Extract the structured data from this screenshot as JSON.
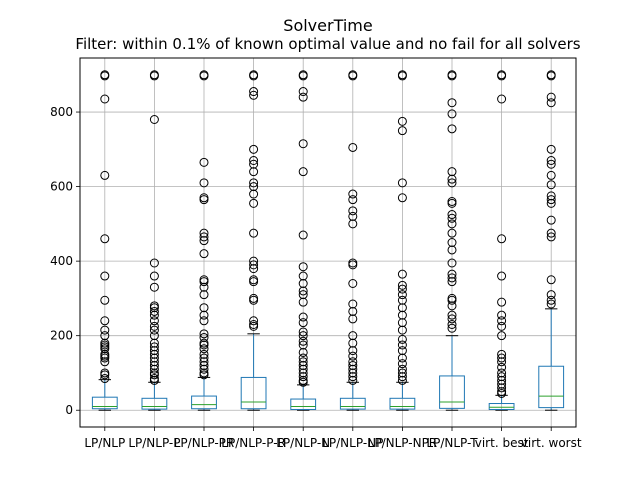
{
  "chart_data": {
    "type": "box",
    "title": "SolverTime",
    "subtitle": "Filter: within 0.1% of known optimal value and no fail for all solvers",
    "xlabel": "",
    "ylabel": "",
    "ylim": [
      -45,
      945
    ],
    "yticks": [
      0,
      200,
      400,
      600,
      800
    ],
    "grid": true,
    "legend": "none",
    "colors": {
      "box": "#1f77b4",
      "median": "#2ca02c",
      "flier": "#000000",
      "grid": "#b0b0b0"
    },
    "categories": [
      "LP/NLP",
      "LP/NLP-P",
      "LP/NLP-PR",
      "LP/NLP-P-R",
      "LP/NLP-N",
      "LP/NLP-NP",
      "LP/NLP-NPR",
      "LP/NLP-T",
      "virt. best",
      "virt. worst"
    ],
    "boxes": [
      {
        "q1": 4,
        "median": 10,
        "q3": 35,
        "whisker_low": 0,
        "whisker_high": 82,
        "fliers": [
          85,
          95,
          100,
          130,
          140,
          145,
          150,
          165,
          170,
          175,
          180,
          200,
          215,
          240,
          295,
          360,
          460,
          630,
          835,
          897,
          900
        ]
      },
      {
        "q1": 3,
        "median": 10,
        "q3": 32,
        "whisker_low": 0,
        "whisker_high": 75,
        "fliers": [
          80,
          85,
          95,
          100,
          110,
          120,
          130,
          140,
          150,
          160,
          170,
          180,
          200,
          215,
          225,
          240,
          255,
          265,
          275,
          280,
          330,
          360,
          395,
          780,
          897,
          900
        ]
      },
      {
        "q1": 4,
        "median": 15,
        "q3": 38,
        "whisker_low": 0,
        "whisker_high": 88,
        "fliers": [
          95,
          100,
          110,
          120,
          130,
          140,
          150,
          165,
          175,
          180,
          195,
          205,
          240,
          255,
          275,
          310,
          330,
          345,
          350,
          420,
          455,
          465,
          475,
          565,
          570,
          610,
          665,
          897,
          900
        ]
      },
      {
        "q1": 4,
        "median": 22,
        "q3": 88,
        "whisker_low": 0,
        "whisker_high": 205,
        "fliers": [
          225,
          230,
          240,
          295,
          300,
          345,
          350,
          380,
          390,
          400,
          475,
          555,
          580,
          600,
          610,
          640,
          660,
          670,
          700,
          845,
          855,
          897,
          900
        ]
      },
      {
        "q1": 2,
        "median": 10,
        "q3": 30,
        "whisker_low": 0,
        "whisker_high": 68,
        "fliers": [
          75,
          80,
          90,
          100,
          110,
          120,
          130,
          140,
          155,
          175,
          185,
          200,
          210,
          235,
          250,
          290,
          310,
          320,
          340,
          360,
          385,
          470,
          640,
          715,
          840,
          855,
          897,
          900
        ]
      },
      {
        "q1": 3,
        "median": 10,
        "q3": 32,
        "whisker_low": 0,
        "whisker_high": 75,
        "fliers": [
          80,
          90,
          100,
          110,
          120,
          130,
          145,
          160,
          180,
          200,
          245,
          265,
          285,
          340,
          390,
          395,
          500,
          520,
          535,
          565,
          580,
          705,
          897,
          900
        ]
      },
      {
        "q1": 3,
        "median": 10,
        "q3": 32,
        "whisker_low": 0,
        "whisker_high": 75,
        "fliers": [
          80,
          90,
          100,
          110,
          125,
          140,
          160,
          175,
          190,
          215,
          235,
          255,
          275,
          295,
          310,
          325,
          335,
          365,
          570,
          610,
          750,
          775,
          897,
          900
        ]
      },
      {
        "q1": 5,
        "median": 22,
        "q3": 92,
        "whisker_low": 0,
        "whisker_high": 200,
        "fliers": [
          220,
          230,
          245,
          255,
          280,
          295,
          300,
          345,
          355,
          365,
          395,
          430,
          450,
          475,
          500,
          515,
          525,
          555,
          560,
          610,
          620,
          640,
          755,
          795,
          825,
          897,
          900
        ]
      },
      {
        "q1": 2,
        "median": 8,
        "q3": 18,
        "whisker_low": 0,
        "whisker_high": 40,
        "fliers": [
          45,
          50,
          60,
          70,
          80,
          90,
          100,
          115,
          130,
          140,
          150,
          200,
          225,
          240,
          255,
          290,
          360,
          460,
          835,
          897,
          900
        ]
      },
      {
        "q1": 7,
        "median": 38,
        "q3": 118,
        "whisker_low": 0,
        "whisker_high": 272,
        "fliers": [
          285,
          295,
          310,
          350,
          465,
          475,
          510,
          555,
          565,
          575,
          605,
          630,
          660,
          670,
          700,
          825,
          840,
          897,
          900
        ]
      }
    ]
  }
}
